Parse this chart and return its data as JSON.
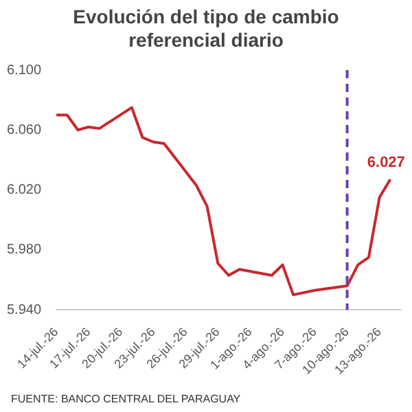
{
  "chart_data": {
    "type": "line",
    "title": "Evolución del tipo de cambio referencial diario",
    "x": [
      "--07-14",
      "--07-15",
      "--07-16",
      "--07-17",
      "--07-18",
      "--07-21",
      "--07-22",
      "--07-23",
      "--07-24",
      "--07-27",
      "--07-28",
      "--07-29",
      "--07-30",
      "--07-31",
      "--08-03",
      "--08-04",
      "--08-05",
      "--08-07",
      "--08-10",
      "--08-11",
      "--08-12",
      "--08-13",
      "--08-14"
    ],
    "series": [
      {
        "color": "#c8282e",
        "values": [
          6.07,
          6.07,
          6.06,
          6.062,
          6.061,
          6.075,
          6.055,
          6.052,
          6.051,
          6.023,
          6.009,
          5.971,
          5.963,
          5.967,
          5.963,
          5.97,
          5.95,
          5.953,
          5.956,
          5.97,
          5.975,
          6.015,
          6.027
        ],
        "value_labels": [
          null,
          null,
          null,
          null,
          null,
          null,
          null,
          null,
          null,
          null,
          null,
          null,
          null,
          null,
          null,
          null,
          null,
          null,
          null,
          null,
          null,
          null,
          "6.027"
        ]
      }
    ],
    "xlim": [
      "--07-14",
      "--08-15"
    ],
    "xticks": [
      {
        "value": "--07-14",
        "label": "14-jul.-26"
      },
      {
        "value": "--07-17",
        "label": "17-jul.-26"
      },
      {
        "value": "--07-20",
        "label": "20-jul.-26"
      },
      {
        "value": "--07-23",
        "label": "23-jul.-26"
      },
      {
        "value": "--07-26",
        "label": "26-jul.-26"
      },
      {
        "value": "--07-29",
        "label": "29-jul.-26"
      },
      {
        "value": "--08-01",
        "label": "1-ago.-26"
      },
      {
        "value": "--08-04",
        "label": "4-ago.-26"
      },
      {
        "value": "--08-07",
        "label": "7-ago.-26"
      },
      {
        "value": "--08-10",
        "label": "10-ago.-26"
      },
      {
        "value": "--08-13",
        "label": "13-ago.-26"
      }
    ],
    "ylim": [
      5.94,
      6.1
    ],
    "yticks": [
      {
        "value": 5.94,
        "label": "5.940"
      },
      {
        "value": 5.98,
        "label": "5.980"
      },
      {
        "value": 6.02,
        "label": "6.020"
      },
      {
        "value": 6.06,
        "label": "6.060"
      },
      {
        "value": 6.1,
        "label": "6.100"
      }
    ],
    "ref_lines": [
      {
        "axis": "x",
        "value": "--08-10",
        "color": "#6a3fb5",
        "line_style": "dashed"
      }
    ],
    "annotations": [
      "FUENTE: BANCO CENTRAL DEL PARAGUAY"
    ]
  }
}
